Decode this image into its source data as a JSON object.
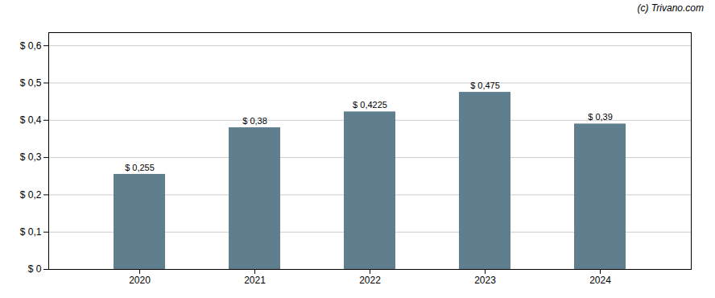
{
  "chart_data": {
    "type": "bar",
    "categories": [
      "2020",
      "2021",
      "2022",
      "2023",
      "2024"
    ],
    "values": [
      0.255,
      0.38,
      0.4225,
      0.475,
      0.39
    ],
    "value_labels": [
      "$ 0,255",
      "$ 0,38",
      "$ 0,4225",
      "$ 0,475",
      "$ 0,39"
    ],
    "data_labels": true,
    "color": "#5f7f8f",
    "ylim": [
      0,
      0.635
    ],
    "yticks": [
      {
        "value": 0.0,
        "label": "$ 0"
      },
      {
        "value": 0.1,
        "label": "$ 0,1"
      },
      {
        "value": 0.2,
        "label": "$ 0,2"
      },
      {
        "value": 0.3,
        "label": "$ 0,3"
      },
      {
        "value": 0.4,
        "label": "$ 0,4"
      },
      {
        "value": 0.5,
        "label": "$ 0,5"
      },
      {
        "value": 0.6,
        "label": "$ 0,6"
      }
    ],
    "grid": true,
    "annotations": [
      "(c) Trivano.com"
    ]
  }
}
